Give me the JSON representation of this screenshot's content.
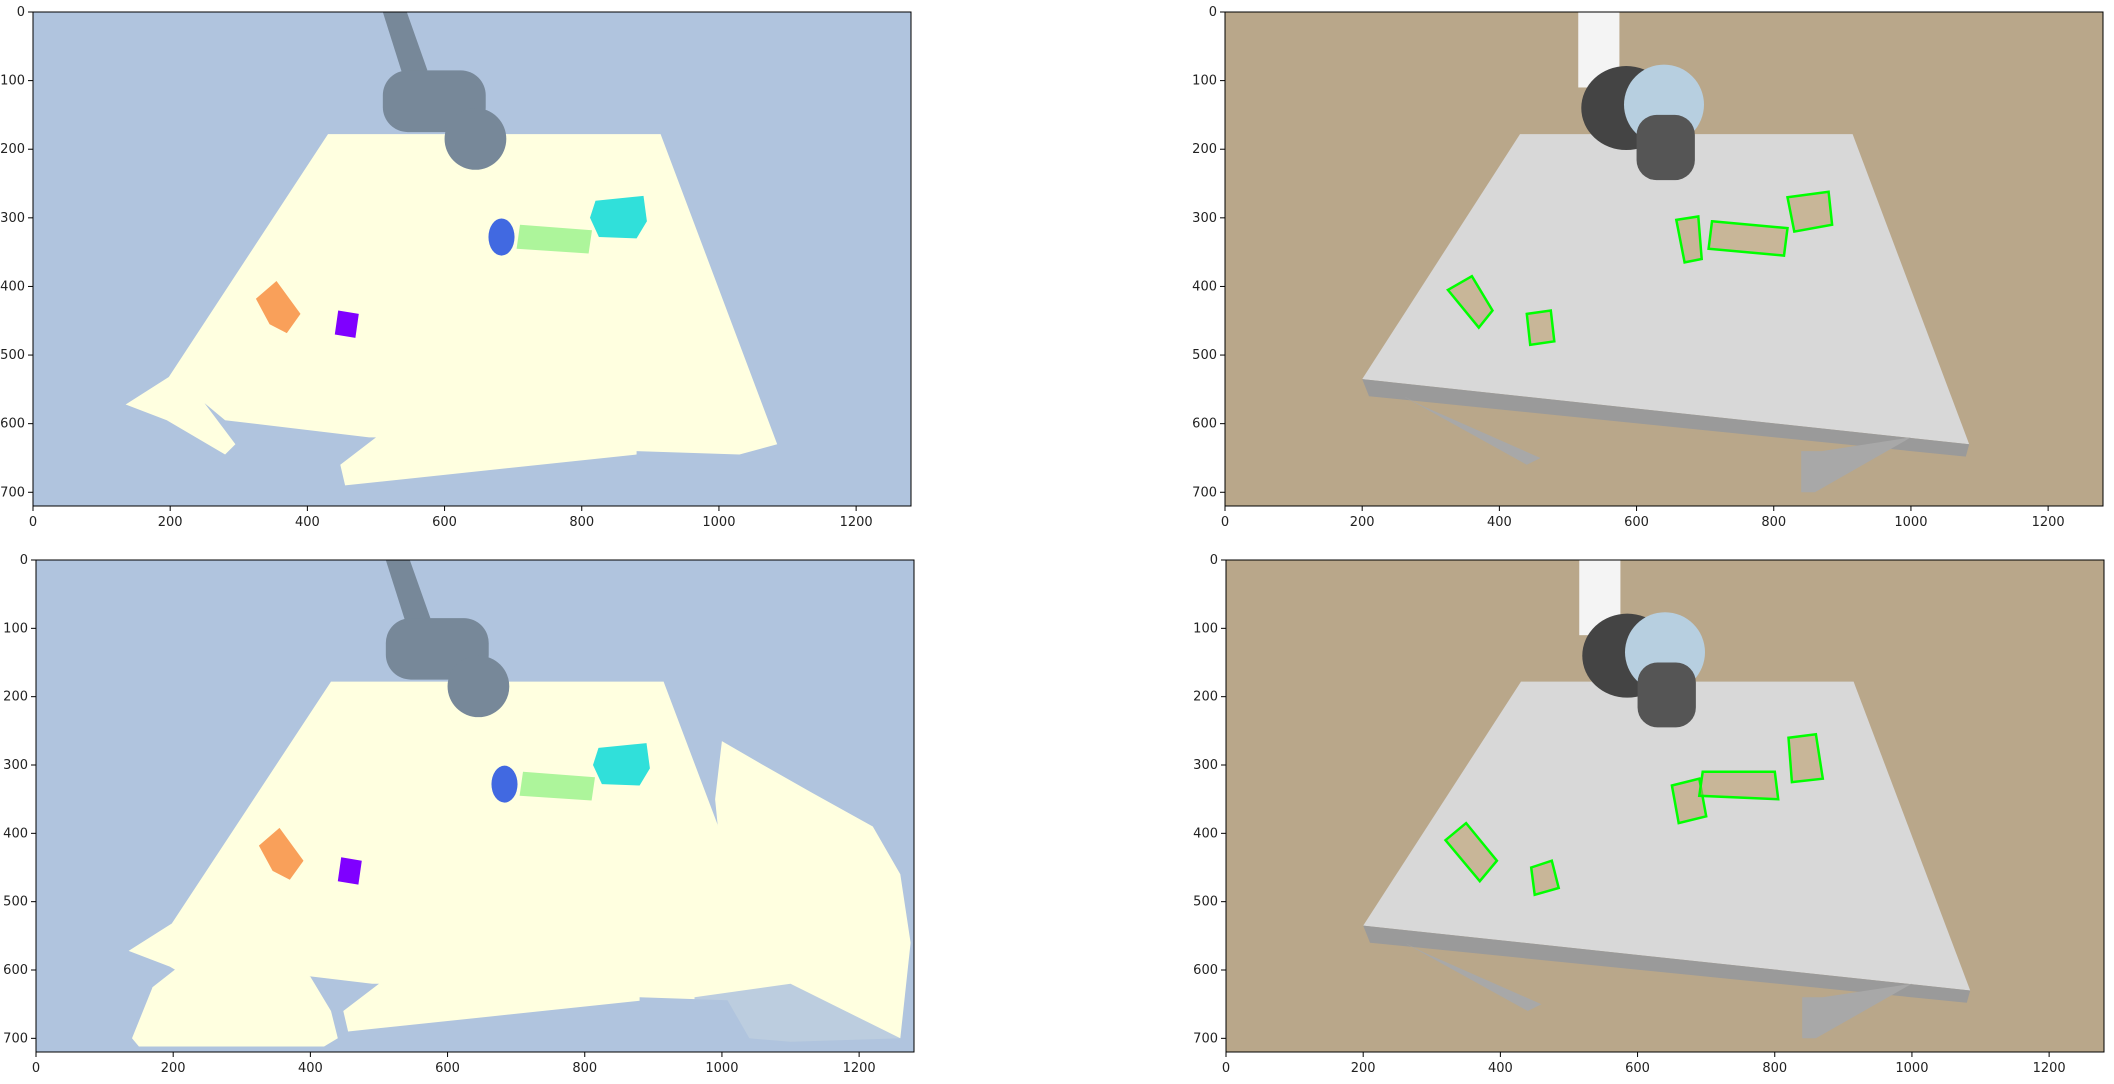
{
  "figure": {
    "panels": [
      {
        "id": "seg-gt",
        "variant": "segmentation",
        "depth_noise": false
      },
      {
        "id": "rgb-gt",
        "variant": "rgb",
        "boxes": "clean"
      },
      {
        "id": "seg-pred",
        "variant": "segmentation",
        "depth_noise": true
      },
      {
        "id": "rgb-pred",
        "variant": "rgb",
        "boxes": "noisy"
      }
    ]
  },
  "chart_data": [
    {
      "type": "image",
      "panel": "seg-gt",
      "xlim": [
        0,
        1280
      ],
      "ylim": [
        720,
        0
      ],
      "xticks": [
        0,
        200,
        400,
        600,
        800,
        1000,
        1200
      ],
      "yticks": [
        0,
        100,
        200,
        300,
        400,
        500,
        600,
        700
      ],
      "colors": {
        "background": "#b0c4de",
        "table": "#ffffe0",
        "robot": "#778899",
        "object_blue": "#4169e1",
        "object_green": "#adf59b",
        "object_cyan": "#30e0da",
        "object_orange": "#f9a05a",
        "object_purple": "#7f00ff"
      }
    },
    {
      "type": "image",
      "panel": "rgb-gt",
      "xlim": [
        0,
        1280
      ],
      "ylim": [
        720,
        0
      ],
      "xticks": [
        0,
        200,
        400,
        600,
        800,
        1000,
        1200
      ],
      "yticks": [
        0,
        100,
        200,
        300,
        400,
        500,
        600,
        700
      ],
      "colors": {
        "background": "#b9a78a",
        "table": "#d8d8d8",
        "box_outline": "#00ff00"
      }
    },
    {
      "type": "image",
      "panel": "seg-pred",
      "xlim": [
        0,
        1280
      ],
      "ylim": [
        720,
        0
      ],
      "xticks": [
        0,
        200,
        400,
        600,
        800,
        1000,
        1200
      ],
      "yticks": [
        0,
        100,
        200,
        300,
        400,
        500,
        600,
        700
      ],
      "colors": {
        "background": "#b0c4de",
        "table": "#ffffe0",
        "robot": "#778899"
      }
    },
    {
      "type": "image",
      "panel": "rgb-pred",
      "xlim": [
        0,
        1280
      ],
      "ylim": [
        720,
        0
      ],
      "xticks": [
        0,
        200,
        400,
        600,
        800,
        1000,
        1200
      ],
      "yticks": [
        0,
        100,
        200,
        300,
        400,
        500,
        600,
        700
      ],
      "colors": {
        "background": "#b9a78a",
        "table": "#d8d8d8",
        "box_outline": "#00ff00"
      }
    }
  ]
}
